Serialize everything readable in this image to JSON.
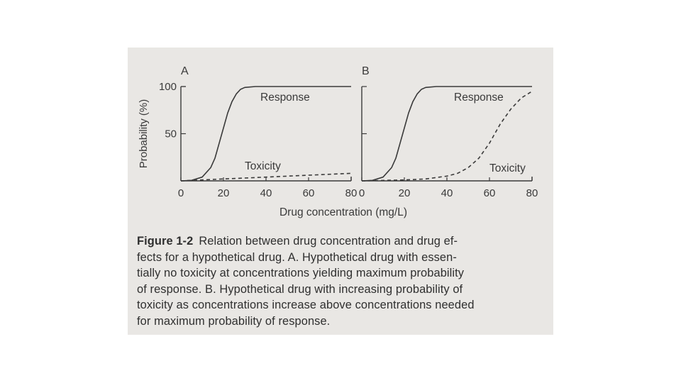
{
  "figure": {
    "label": "Figure 1-2",
    "caption_lines": [
      "Relation between drug concentration and drug ef-",
      "fects for a hypothetical drug. A. Hypothetical drug with essen-",
      "tially no toxicity at concentrations yielding maximum probability",
      "of response. B. Hypothetical drug with increasing probability of",
      "toxicity as concentrations increase above concentrations needed",
      "for maximum probability of response."
    ]
  },
  "colors": {
    "ink": "#3a3a3a",
    "paper": "#e9e7e4"
  },
  "chart_data": [
    {
      "panel": "A",
      "type": "line",
      "xlabel": "Drug concentration (mg/L)",
      "ylabel": "Probability (%)",
      "xlim": [
        0,
        80
      ],
      "ylim": [
        0,
        100
      ],
      "xticks": [
        "0",
        "20",
        "40",
        "60",
        "80"
      ],
      "yticks": [
        "0",
        "50",
        "100"
      ],
      "grid": false,
      "series": [
        {
          "name": "Response",
          "style": "solid",
          "x": [
            0,
            5,
            10,
            14,
            16,
            18,
            20,
            22,
            24,
            26,
            28,
            30,
            35,
            40,
            50,
            60,
            70,
            80
          ],
          "y": [
            0,
            0.5,
            4,
            14,
            24,
            40,
            56,
            72,
            84,
            92,
            97,
            99,
            100,
            100,
            100,
            100,
            100,
            100
          ]
        },
        {
          "name": "Toxicity",
          "style": "dashed",
          "x": [
            0,
            20,
            40,
            60,
            80
          ],
          "y": [
            0,
            2,
            4,
            6,
            8
          ]
        }
      ]
    },
    {
      "panel": "B",
      "type": "line",
      "xlim": [
        0,
        80
      ],
      "ylim": [
        0,
        100
      ],
      "xticks": [
        "0",
        "20",
        "40",
        "60",
        "80"
      ],
      "grid": false,
      "series": [
        {
          "name": "Response",
          "style": "solid",
          "x": [
            0,
            5,
            10,
            14,
            16,
            18,
            20,
            22,
            24,
            26,
            28,
            30,
            35,
            40,
            50,
            60,
            70,
            80
          ],
          "y": [
            0,
            0.5,
            4,
            14,
            24,
            40,
            56,
            72,
            84,
            92,
            97,
            99,
            100,
            100,
            100,
            100,
            100,
            100
          ]
        },
        {
          "name": "Toxicity",
          "style": "dashed",
          "x": [
            0,
            20,
            30,
            40,
            45,
            50,
            55,
            60,
            65,
            70,
            75,
            80
          ],
          "y": [
            0,
            1,
            2,
            5,
            8,
            14,
            24,
            40,
            60,
            76,
            88,
            95
          ]
        }
      ]
    }
  ]
}
